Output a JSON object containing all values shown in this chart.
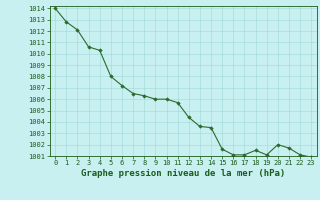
{
  "x": [
    0,
    1,
    2,
    3,
    4,
    5,
    6,
    7,
    8,
    9,
    10,
    11,
    12,
    13,
    14,
    15,
    16,
    17,
    18,
    19,
    20,
    21,
    22,
    23
  ],
  "y": [
    1014.0,
    1012.8,
    1012.1,
    1010.6,
    1010.3,
    1008.0,
    1007.2,
    1006.5,
    1006.3,
    1006.0,
    1006.0,
    1005.7,
    1004.4,
    1003.6,
    1003.5,
    1001.6,
    1001.1,
    1001.1,
    1001.5,
    1001.1,
    1002.0,
    1001.7,
    1001.1,
    1000.9
  ],
  "ylim": [
    1001,
    1014.2
  ],
  "xlim": [
    -0.5,
    23.5
  ],
  "yticks": [
    1001,
    1002,
    1003,
    1004,
    1005,
    1006,
    1007,
    1008,
    1009,
    1010,
    1011,
    1012,
    1013,
    1014
  ],
  "xticks": [
    0,
    1,
    2,
    3,
    4,
    5,
    6,
    7,
    8,
    9,
    10,
    11,
    12,
    13,
    14,
    15,
    16,
    17,
    18,
    19,
    20,
    21,
    22,
    23
  ],
  "line_color": "#2d6a2d",
  "marker_color": "#2d6a2d",
  "bg_color": "#c8f0f0",
  "grid_color": "#a0d8d8",
  "xlabel": "Graphe pression niveau de la mer (hPa)",
  "xlabel_color": "#1a5c1a",
  "tick_color": "#1a5c1a",
  "tick_fontsize": 5.0,
  "xlabel_fontsize": 6.5,
  "axis_bg": "#c8f0f0"
}
